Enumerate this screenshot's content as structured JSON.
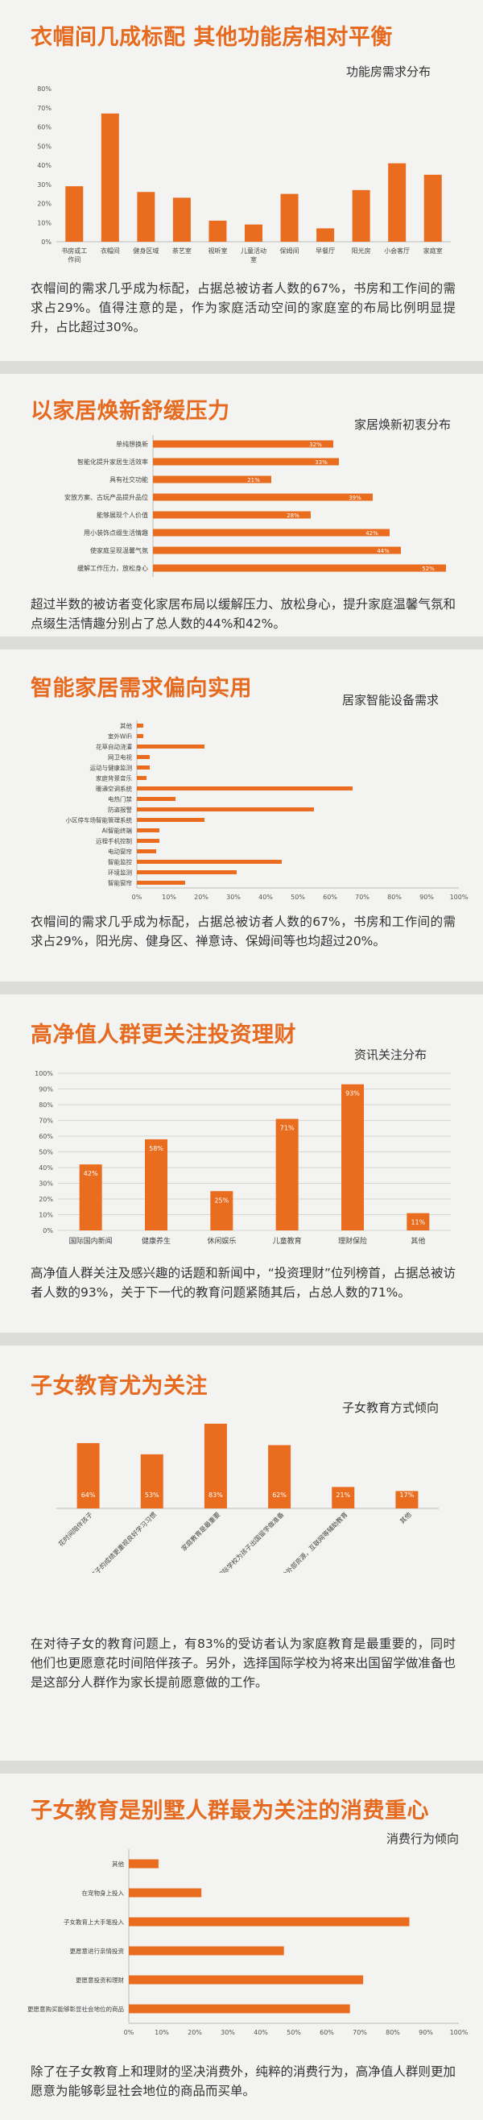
{
  "sections": [
    {
      "heading": "衣帽间几成标配 其他功能房相对平衡",
      "chart_title": "功能房需求分布",
      "paragraph": "衣帽间的需求几乎成为标配，占据总被访者人数的67%，书房和工作间的需求占29%。值得注意的是，作为家庭活动空间的家庭室的布局比例明显提升，占比超过30%。"
    },
    {
      "heading": "以家居焕新舒缓压力",
      "chart_title": "家居焕新初衷分布",
      "paragraph": "超过半数的被访者变化家居布局以缓解压力、放松身心，提升家庭温馨气氛和点缀生活情趣分别占了总人数的44%和42%。"
    },
    {
      "heading": "智能家居需求偏向实用",
      "chart_title": "居家智能设备需求",
      "paragraph": "衣帽间的需求几乎成为标配，占据总被访者人数的67%，书房和工作间的需求占29%，阳光房、健身区、禅意诗、保姆间等也均超过20%。"
    },
    {
      "heading": "高净值人群更关注投资理财",
      "chart_title": "资讯关注分布",
      "paragraph": "高净值人群关注及感兴趣的话题和新闻中，“投资理财”位列榜首，占据总被访者人数的93%，关于下一代的教育问题紧随其后，占总人数的71%。"
    },
    {
      "heading": "子女教育尤为关注",
      "chart_title": "子女教育方式倾向",
      "paragraph": "在对待子女的教育问题上，有83%的受访者认为家庭教育是最重要的，同时他们也更愿意花时间陪伴孩子。另外，选择国际学校为将来出国留学做准备也是这部分人群作为家长提前愿意做的工作。"
    },
    {
      "heading": "子女教育是别墅人群最为关注的消费重心",
      "chart_title": "消费行为倾向",
      "paragraph": "除了在子女教育上和理财的坚决消费外，纯粹的消费行为，高净值人群则更加愿意为能够彰显社会地位的商品而买单。"
    }
  ],
  "colors": {
    "accent": "#e66a1f",
    "bar": "#ea6d1f",
    "band": "#dcdcda",
    "bg": "#f3f3f1"
  },
  "chart_data": [
    {
      "type": "bar",
      "title": "功能房需求分布",
      "categories": [
        "书房或工作间",
        "衣帽间",
        "健身区域",
        "茶艺室",
        "视听室",
        "儿童活动室",
        "保姆间",
        "早餐厅",
        "阳光房",
        "小会客厅",
        "家庭室"
      ],
      "values": [
        29,
        67,
        26,
        23,
        11,
        9,
        25,
        7,
        27,
        41,
        35
      ],
      "ylim": [
        0,
        80
      ],
      "yticks": [
        "0%",
        "10%",
        "20%",
        "30%",
        "40%",
        "50%",
        "60%",
        "70%",
        "80%"
      ],
      "grid": false
    },
    {
      "type": "bar",
      "orientation": "horizontal",
      "title": "家居焕新初衷分布",
      "categories": [
        "单纯想换新",
        "智能化提升家居生活效率",
        "具有社交功能",
        "安放方案、古玩产品提升品位",
        "能够展现个人价值",
        "用小装饰点缀生活情趣",
        "使家庭呈现温馨气氛",
        "缓解工作压力，放松身心"
      ],
      "values": [
        32,
        33,
        21,
        39,
        28,
        42,
        44,
        52
      ],
      "data_labels": [
        "32%",
        "33%",
        "21%",
        "39%",
        "28%",
        "42%",
        "44%",
        "52%"
      ],
      "xlim": [
        0,
        55
      ]
    },
    {
      "type": "bar",
      "orientation": "horizontal",
      "title": "居家智能设备需求",
      "categories": [
        "其他",
        "室外WiFi",
        "花草自动浇灌",
        "网卫电视",
        "运动与健康监测",
        "家庭背景音乐",
        "暖通空调系统",
        "电热门禁",
        "防盗报警",
        "小区停车场智能管理系统",
        "AI智能终端",
        "远程手机控制",
        "电动窗帘",
        "智能监控",
        "环境监测",
        "智能窗帘"
      ],
      "values": [
        2,
        2,
        21,
        4,
        4,
        3,
        67,
        12,
        55,
        21,
        7,
        7,
        6,
        45,
        31,
        15
      ],
      "xlim": [
        0,
        100
      ],
      "xticks": [
        "0%",
        "10%",
        "20%",
        "30%",
        "40%",
        "50%",
        "60%",
        "70%",
        "80%",
        "90%",
        "100%"
      ]
    },
    {
      "type": "bar",
      "title": "资讯关注分布",
      "categories": [
        "国际国内新闻",
        "健康养生",
        "休闲娱乐",
        "儿童教育",
        "理财保险",
        "其他"
      ],
      "values": [
        42,
        58,
        25,
        71,
        93,
        11
      ],
      "data_labels": [
        "42%",
        "58%",
        "25%",
        "71%",
        "93%",
        "11%"
      ],
      "ylim": [
        0,
        100
      ],
      "yticks": [
        "0%",
        "10%",
        "20%",
        "30%",
        "40%",
        "50%",
        "60%",
        "70%",
        "80%",
        "90%",
        "100%"
      ],
      "grid": true
    },
    {
      "type": "bar",
      "title": "子女教育方式倾向",
      "categories": [
        "花时间陪伴孩子",
        "相较孩子的成绩更重视良好学习习惯",
        "家庭教育是最重要",
        "国际学校为孩子出国留学做准备",
        "借助外部资源，互联网等辅助教育",
        "其他"
      ],
      "values": [
        64,
        53,
        83,
        62,
        21,
        17
      ],
      "data_labels": [
        "64%",
        "53%",
        "83%",
        "62%",
        "21%",
        "17%"
      ],
      "ylim": [
        0,
        90
      ]
    },
    {
      "type": "bar",
      "orientation": "horizontal",
      "title": "消费行为倾向",
      "categories": [
        "其他",
        "在宠物身上投入",
        "子女教育上大手笔投入",
        "更愿意进行亲情投资",
        "更愿意投资和理财",
        "更愿意购买能够彰显社会地位的商品"
      ],
      "values": [
        9,
        22,
        85,
        47,
        71,
        67
      ],
      "xlim": [
        0,
        100
      ],
      "xticks": [
        "0%",
        "10%",
        "20%",
        "30%",
        "40%",
        "50%",
        "60%",
        "70%",
        "80%",
        "90%",
        "100%"
      ]
    }
  ]
}
